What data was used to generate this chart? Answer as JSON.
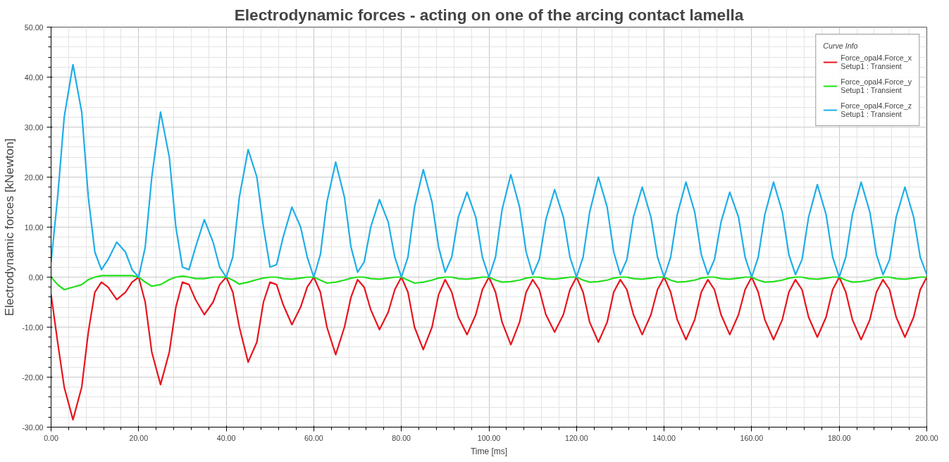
{
  "chart_data": {
    "type": "line",
    "title": "Electrodynamic forces - acting on one of the arcing contact lamella",
    "xlabel": "Time [ms]",
    "ylabel": "Electrodynamic forces [kNewton]",
    "legend_title": "Curve Info",
    "legend": "top right",
    "grid": true,
    "marker": "none",
    "line_style": "solid",
    "xlim": [
      0,
      200
    ],
    "ylim": [
      -30,
      50
    ],
    "xticks": [
      {
        "value": 0,
        "label": "0.00"
      },
      {
        "value": 20,
        "label": "20.00"
      },
      {
        "value": 40,
        "label": "40.00"
      },
      {
        "value": 60,
        "label": "60.00"
      },
      {
        "value": 80,
        "label": "80.00"
      },
      {
        "value": 100,
        "label": "100.00"
      },
      {
        "value": 120,
        "label": "120.00"
      },
      {
        "value": 140,
        "label": "140.00"
      },
      {
        "value": 160,
        "label": "160.00"
      },
      {
        "value": 180,
        "label": "180.00"
      },
      {
        "value": 200,
        "label": "200.00"
      }
    ],
    "yticks": [
      {
        "value": -30,
        "label": "-30.00"
      },
      {
        "value": -20,
        "label": "-20.00"
      },
      {
        "value": -10,
        "label": "-10.00"
      },
      {
        "value": 0,
        "label": "0.00"
      },
      {
        "value": 10,
        "label": "10.00"
      },
      {
        "value": 20,
        "label": "20.00"
      },
      {
        "value": 30,
        "label": "30.00"
      },
      {
        "value": 40,
        "label": "40.00"
      },
      {
        "value": 50,
        "label": "50.00"
      }
    ],
    "x": [
      0,
      1.5,
      3,
      5,
      7,
      8.5,
      10,
      11.5,
      13,
      15,
      17,
      18.5,
      20,
      21.5,
      23,
      25,
      27,
      28.5,
      30,
      31.5,
      33,
      35,
      37,
      38.5,
      40,
      41.5,
      43,
      45,
      47,
      48.5,
      50,
      51.5,
      53,
      55,
      57,
      58.5,
      60,
      61.5,
      63,
      65,
      67,
      68.5,
      70,
      71.5,
      73,
      75,
      77,
      78.5,
      80,
      81.5,
      83,
      85,
      87,
      88.5,
      90,
      91.5,
      93,
      95,
      97,
      98.5,
      100,
      101.5,
      103,
      105,
      107,
      108.5,
      110,
      111.5,
      113,
      115,
      117,
      118.5,
      120,
      121.5,
      123,
      125,
      127,
      128.5,
      130,
      131.5,
      133,
      135,
      137,
      138.5,
      140,
      141.5,
      143,
      145,
      147,
      148.5,
      150,
      151.5,
      153,
      155,
      157,
      158.5,
      160,
      161.5,
      163,
      165,
      167,
      168.5,
      170,
      171.5,
      173,
      175,
      177,
      178.5,
      180,
      181.5,
      183,
      185,
      187,
      188.5,
      190,
      191.5,
      193,
      195,
      197,
      198.5,
      200
    ],
    "series": [
      {
        "name": "Force_opal4.Force_x\nSetup1 : Transient",
        "color": "#e8141c",
        "values": [
          -3.5,
          -13,
          -22,
          -28.5,
          -22,
          -11,
          -3,
          -1,
          -2,
          -4.5,
          -3,
          -1,
          0,
          -5,
          -15,
          -21.5,
          -15,
          -6,
          -1,
          -1.5,
          -4.5,
          -7.5,
          -5,
          -1.5,
          0,
          -3,
          -10,
          -17,
          -13,
          -5,
          -1,
          -1.5,
          -5.5,
          -9.5,
          -6,
          -2,
          0,
          -3,
          -10,
          -15.5,
          -10,
          -4,
          -0.5,
          -2,
          -6.5,
          -10.5,
          -7,
          -2.5,
          0,
          -3,
          -10,
          -14.5,
          -10,
          -3.5,
          -0.5,
          -3,
          -8,
          -11.5,
          -7.5,
          -2.5,
          0,
          -3,
          -9,
          -13.5,
          -9,
          -3,
          -0.5,
          -2.5,
          -7.5,
          -11,
          -7.5,
          -2.5,
          0,
          -3,
          -9,
          -13,
          -9,
          -3,
          -0.5,
          -2.5,
          -7.5,
          -11.5,
          -7.5,
          -2.5,
          0,
          -3,
          -8.5,
          -12.5,
          -8.5,
          -3,
          -0.5,
          -2.5,
          -7.5,
          -11.5,
          -7.5,
          -2.5,
          0,
          -3,
          -8.5,
          -12.5,
          -8.5,
          -3,
          -0.5,
          -2.5,
          -8,
          -12,
          -8,
          -2.5,
          0,
          -3,
          -8.5,
          -12.5,
          -8.5,
          -3,
          -0.5,
          -2.5,
          -8,
          -12,
          -8,
          -2.5,
          0
        ]
      },
      {
        "name": "Force_opal4.Force_y\nSetup1 : Transient",
        "color": "#22e01c",
        "values": [
          0,
          -1.5,
          -2.5,
          -2,
          -1.5,
          -0.5,
          0,
          0.3,
          0.3,
          0.3,
          0.3,
          0.3,
          0,
          -1,
          -1.8,
          -1.5,
          -0.5,
          0,
          0.2,
          0,
          -0.3,
          -0.3,
          0,
          0,
          0,
          -0.6,
          -1.4,
          -1,
          -0.5,
          -0.2,
          0,
          0,
          -0.3,
          -0.4,
          -0.2,
          0,
          0,
          -0.6,
          -1.2,
          -1,
          -0.6,
          -0.2,
          0,
          0,
          -0.3,
          -0.4,
          -0.2,
          0,
          0,
          -0.6,
          -1.2,
          -1,
          -0.6,
          -0.2,
          0,
          0,
          -0.3,
          -0.4,
          -0.2,
          0,
          0,
          -0.6,
          -1,
          -0.9,
          -0.6,
          -0.2,
          0,
          0,
          -0.3,
          -0.4,
          -0.2,
          0,
          0,
          -0.6,
          -1,
          -0.9,
          -0.6,
          -0.2,
          0,
          0,
          -0.3,
          -0.4,
          -0.2,
          0,
          0,
          -0.6,
          -1,
          -0.9,
          -0.6,
          -0.2,
          0,
          0,
          -0.3,
          -0.4,
          -0.2,
          0,
          0,
          -0.6,
          -1,
          -0.9,
          -0.6,
          -0.2,
          0,
          0,
          -0.3,
          -0.4,
          -0.2,
          0,
          0,
          -0.6,
          -1,
          -0.9,
          -0.6,
          -0.2,
          0,
          0,
          -0.3,
          -0.4,
          -0.2,
          0,
          0
        ]
      },
      {
        "name": "Force_opal4.Force_z\nSetup1 : Transient",
        "color": "#1eaee8",
        "values": [
          3,
          16,
          32,
          42.5,
          33,
          16,
          5,
          1.5,
          3.5,
          7,
          5,
          1.5,
          0,
          6,
          20,
          33,
          24,
          10,
          2,
          1.5,
          6,
          11.5,
          7,
          2,
          0,
          4,
          16,
          25.5,
          20,
          10,
          2,
          2.5,
          8,
          14,
          10,
          4,
          0,
          4.5,
          15,
          23,
          16,
          6,
          1,
          3,
          10,
          15.5,
          11,
          4,
          0,
          4,
          14,
          21.5,
          15,
          6,
          1,
          4,
          12,
          17,
          12,
          4,
          0,
          4,
          13.5,
          20.5,
          14,
          5,
          0.5,
          3.5,
          11.5,
          17.5,
          12,
          4,
          0,
          4,
          13,
          20,
          14,
          5,
          0.5,
          3.5,
          12,
          18,
          12,
          4,
          0,
          4,
          12.5,
          19,
          13,
          4.5,
          0.5,
          3.5,
          11,
          17,
          12,
          4,
          0,
          4,
          12.5,
          19,
          13,
          4.5,
          0.5,
          3.5,
          12,
          18.5,
          12.5,
          4,
          0,
          4,
          12.5,
          19,
          13,
          4.5,
          0.5,
          3.5,
          12,
          18,
          12,
          4,
          0.5
        ]
      }
    ]
  }
}
